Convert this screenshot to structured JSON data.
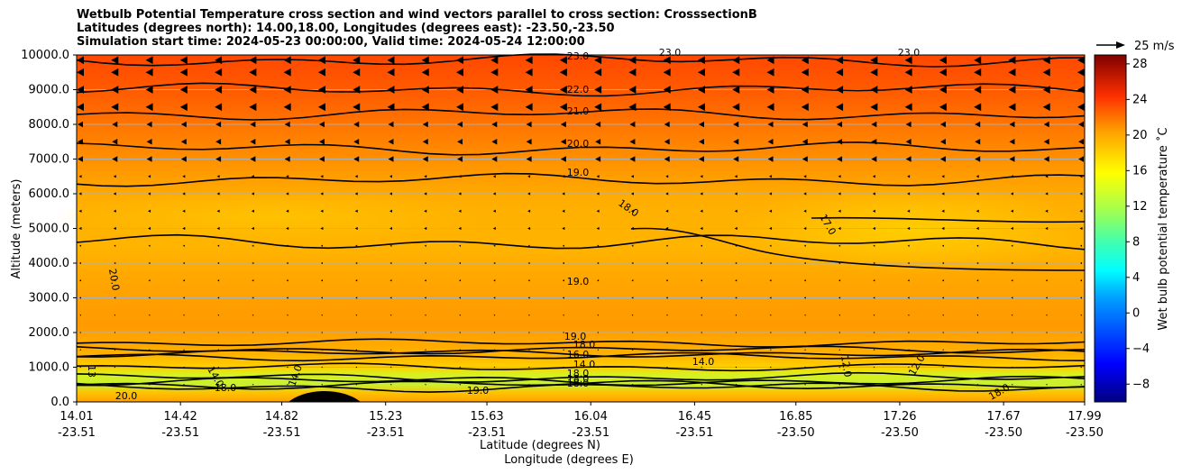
{
  "chart_data": {
    "type": "heatmap",
    "title_lines": [
      "Wetbulb Potential Temperature cross section and wind vectors parallel to cross section: CrosssectionB",
      "Latitudes (degrees north): 14.00,18.00, Longitudes (degrees east): -23.50,-23.50",
      "Simulation start time: 2024-05-23 00:00:00, Valid time: 2024-05-24 12:00:00"
    ],
    "ylabel": "Altitude (meters)",
    "xlabel_lat": "Latitude (degrees N)",
    "xlabel_lon": "Longitude (degrees E)",
    "ylim": [
      0,
      10000
    ],
    "xlim": [
      14.01,
      17.99
    ],
    "y_ticks": [
      "0.0",
      "1000.0",
      "2000.0",
      "3000.0",
      "4000.0",
      "5000.0",
      "6000.0",
      "7000.0",
      "8000.0",
      "9000.0",
      "10000.0"
    ],
    "x_ticks_lat": [
      "14.01",
      "14.42",
      "14.82",
      "15.23",
      "15.63",
      "16.04",
      "16.45",
      "16.85",
      "17.26",
      "17.67",
      "17.99"
    ],
    "x_ticks_lon": [
      "-23.51",
      "-23.51",
      "-23.51",
      "-23.51",
      "-23.51",
      "-23.51",
      "-23.51",
      "-23.50",
      "-23.50",
      "-23.50",
      "-23.50"
    ],
    "colorbar": {
      "label": "Wet bulb potential temperature ˚C",
      "range": [
        -10,
        29
      ],
      "ticks": [
        "−8",
        "−4",
        "0",
        "4",
        "8",
        "12",
        "16",
        "20",
        "24",
        "28"
      ]
    },
    "vector_key": "25 m/s",
    "contour_labels": [
      "23.0",
      "23.0",
      "23.0",
      "22.0",
      "21.0",
      "20.0",
      "19.0",
      "18.0",
      "17.0",
      "20.0",
      "19.0",
      "19.0",
      "18.0",
      "16.0",
      "14.0",
      "14.0",
      "18.0",
      "18.0",
      "18.0",
      "20.0",
      "14.0",
      "14.0",
      "18.0",
      "19.0",
      "12.0",
      "12.0",
      "18.0",
      "13"
    ],
    "levels": {
      "contours_altitude": [
        {
          "value": 23,
          "alt_m": 9850
        },
        {
          "value": 22,
          "alt_m": 9000
        },
        {
          "value": 21,
          "alt_m": 8300
        },
        {
          "value": 20,
          "alt_m": 7300
        },
        {
          "value": 19,
          "alt_m": 6400
        },
        {
          "value": 19,
          "alt_m": 4600
        },
        {
          "value": 19,
          "alt_m": 1700
        },
        {
          "value": 18,
          "alt_m": 1500
        },
        {
          "value": 17,
          "alt_m": 1400
        },
        {
          "value": 16,
          "alt_m": 1300
        },
        {
          "value": 14,
          "alt_m": 1000
        }
      ]
    },
    "colors": {
      "top": "#ff4500",
      "mid": "#ffb000",
      "low": "#ffd400",
      "green": "#b8f030",
      "frame": "#000000"
    }
  }
}
